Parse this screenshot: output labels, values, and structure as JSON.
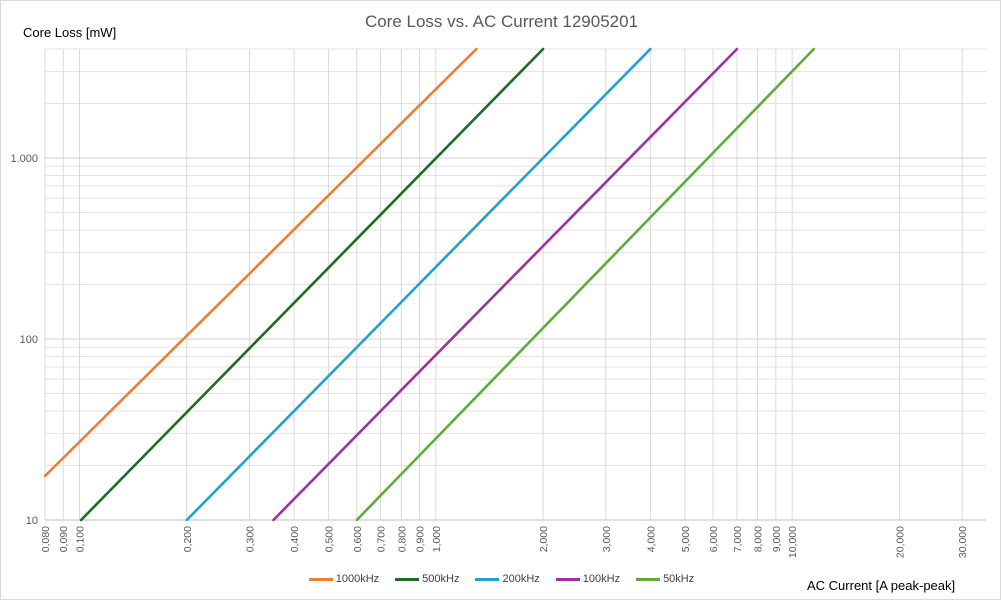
{
  "chart_data": {
    "type": "line",
    "title": "Core Loss vs. AC Current 12905201",
    "xlabel": "AC Current [A peak-peak]",
    "ylabel": "Core Loss [mW]",
    "x_scale": "log",
    "y_scale": "log",
    "xlim": [
      0.08,
      35
    ],
    "ylim": [
      10,
      4000
    ],
    "x_ticks": [
      {
        "value": 0.08,
        "label": "0,080"
      },
      {
        "value": 0.09,
        "label": "0,090"
      },
      {
        "value": 0.1,
        "label": "0,100"
      },
      {
        "value": 0.2,
        "label": "0,200"
      },
      {
        "value": 0.3,
        "label": "0,300"
      },
      {
        "value": 0.4,
        "label": "0,400"
      },
      {
        "value": 0.5,
        "label": "0,500"
      },
      {
        "value": 0.6,
        "label": "0,600"
      },
      {
        "value": 0.7,
        "label": "0,700"
      },
      {
        "value": 0.8,
        "label": "0,800"
      },
      {
        "value": 0.9,
        "label": "0,900"
      },
      {
        "value": 1,
        "label": "1,000"
      },
      {
        "value": 2,
        "label": "2,000"
      },
      {
        "value": 3,
        "label": "3,000"
      },
      {
        "value": 4,
        "label": "4,000"
      },
      {
        "value": 5,
        "label": "5,000"
      },
      {
        "value": 6,
        "label": "6,000"
      },
      {
        "value": 7,
        "label": "7,000"
      },
      {
        "value": 8,
        "label": "8,000"
      },
      {
        "value": 9,
        "label": "9,000"
      },
      {
        "value": 10,
        "label": "10,000"
      },
      {
        "value": 20,
        "label": "20,000"
      },
      {
        "value": 30,
        "label": "30,000"
      }
    ],
    "y_ticks": [
      {
        "value": 10,
        "label": "10"
      },
      {
        "value": 100,
        "label": "100"
      },
      {
        "value": 1000,
        "label": "1.000"
      }
    ],
    "grid": true,
    "legend_position": "bottom",
    "series": [
      {
        "name": "1000kHz",
        "color": "#ED7D31",
        "x": [
          0.08,
          1.3
        ],
        "y": [
          17.5,
          4000
        ]
      },
      {
        "name": "500kHz",
        "color": "#1E6B23",
        "x": [
          0.101,
          2.0
        ],
        "y": [
          10,
          4000
        ]
      },
      {
        "name": "200kHz",
        "color": "#21A0D2",
        "x": [
          0.2,
          4.0
        ],
        "y": [
          10,
          4000
        ]
      },
      {
        "name": "100kHz",
        "color": "#A0309E",
        "x": [
          0.35,
          7.0
        ],
        "y": [
          10,
          4000
        ]
      },
      {
        "name": "50kHz",
        "color": "#5EAC37",
        "x": [
          0.6,
          11.5
        ],
        "y": [
          10,
          4000
        ]
      }
    ]
  }
}
